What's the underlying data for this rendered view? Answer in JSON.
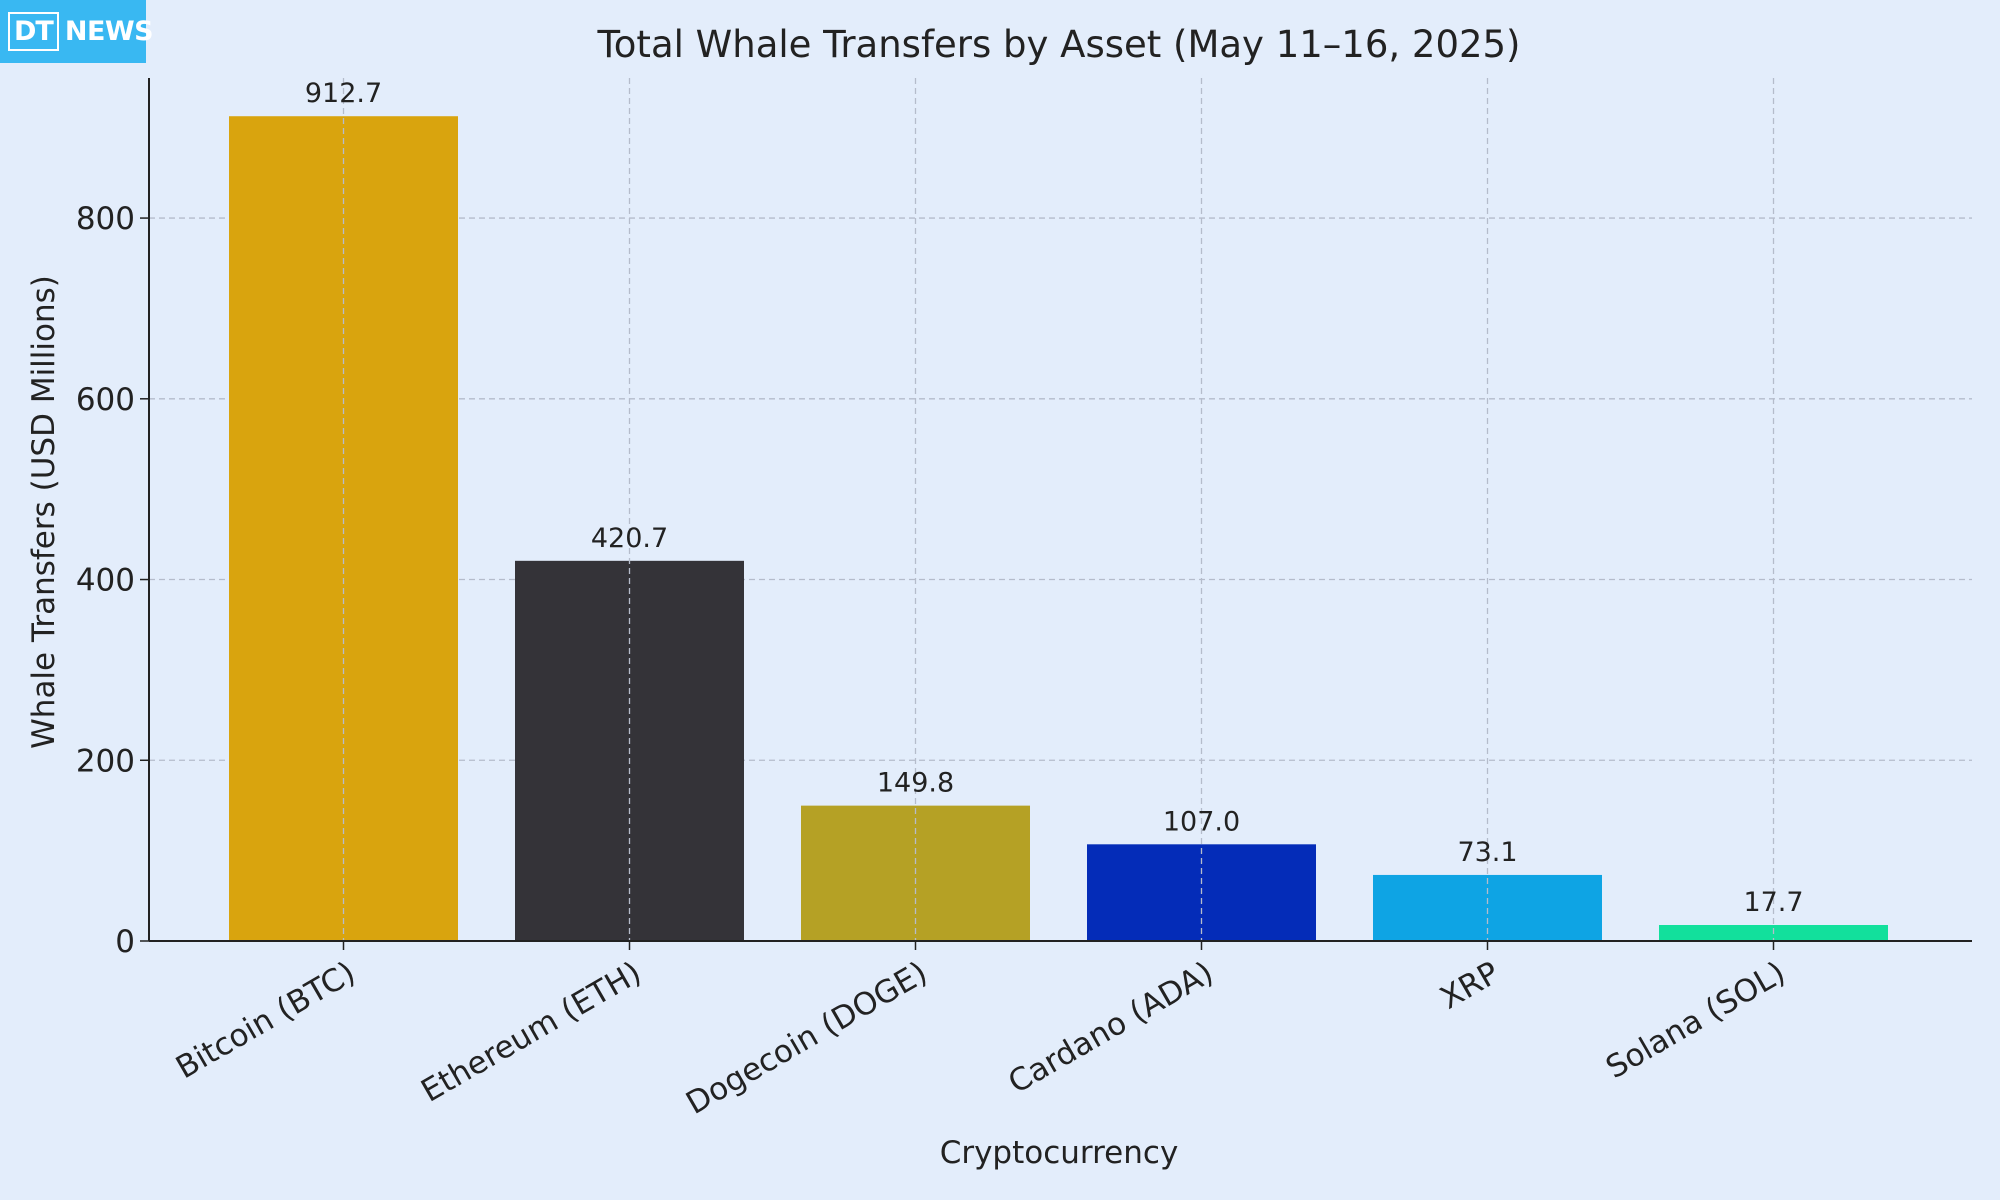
{
  "logo": {
    "left": "DT",
    "right": "NEWS",
    "background": "#39b8f2"
  },
  "chart_data": {
    "type": "bar",
    "title": "Total Whale Transfers by Asset (May 11–16, 2025)",
    "xlabel": "Cryptocurrency",
    "ylabel": "Whale Transfers (USD Millions)",
    "categories": [
      "Bitcoin (BTC)",
      "Ethereum (ETH)",
      "Dogecoin (DOGE)",
      "Cardano (ADA)",
      "XRP",
      "Solana (SOL)"
    ],
    "values": [
      912.7,
      420.7,
      149.8,
      107.0,
      73.1,
      17.7
    ],
    "value_labels": [
      "912.7",
      "420.7",
      "149.8",
      "107.0",
      "73.1",
      "17.7"
    ],
    "colors": [
      "#d9a40e",
      "#343338",
      "#b5a125",
      "#042cb8",
      "#0ea4e4",
      "#12e09c"
    ],
    "ylim": [
      0,
      955
    ],
    "yticks": [
      0,
      200,
      400,
      600,
      800
    ],
    "grid": true,
    "background": "#e3edfb"
  }
}
